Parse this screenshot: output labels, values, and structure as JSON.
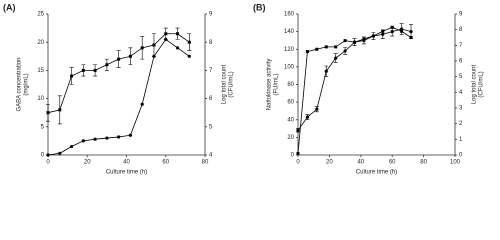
{
  "chart_data": [
    {
      "type": "line",
      "label": "(A)",
      "xlabel": "Culture time (h)",
      "ylabel": "GABA concentration\n(mg/mL)",
      "y2label": "Log total count\n(CFU/mL)",
      "x": [
        0,
        6,
        12,
        18,
        24,
        30,
        36,
        42,
        48,
        54,
        60,
        66,
        72
      ],
      "xlim": [
        0,
        80
      ],
      "xticks": [
        0,
        20,
        40,
        60,
        80
      ],
      "ylim": [
        0,
        25
      ],
      "yticks": [
        0,
        5,
        10,
        15,
        20,
        25
      ],
      "y2lim": [
        4,
        9
      ],
      "y2ticks": [
        4,
        5,
        6,
        7,
        8,
        9
      ],
      "series": [
        {
          "color": "#000000",
          "marker": "circle",
          "values": [
            0,
            0.3,
            1.5,
            2.5,
            2.8,
            3,
            3.2,
            3.5,
            9,
            17.5,
            20.5,
            19,
            17.5
          ]
        },
        {
          "color": "#000000",
          "marker": "square",
          "axis": "y2",
          "values": [
            5.5,
            5.6,
            6.8,
            7.0,
            7.0,
            7.2,
            7.4,
            7.5,
            7.8,
            7.9,
            8.3,
            8.3,
            8.0
          ],
          "errors": [
            0.3,
            0.5,
            0.3,
            0.2,
            0.2,
            0.2,
            0.3,
            0.3,
            0.4,
            0.4,
            0.2,
            0.2,
            0.3
          ]
        }
      ]
    },
    {
      "type": "line",
      "label": "(B)",
      "xlabel": "Culture time (h)",
      "ylabel": "Nattokinase activity\n(FU/mL)",
      "y2label": "Log total count\n(CFU/mL)",
      "x": [
        0,
        6,
        12,
        18,
        24,
        30,
        36,
        42,
        48,
        54,
        60,
        66,
        72
      ],
      "xlim": [
        0,
        100
      ],
      "xticks": [
        0,
        20,
        40,
        60,
        80,
        100
      ],
      "ylim": [
        0,
        160
      ],
      "yticks": [
        0,
        20,
        40,
        60,
        80,
        100,
        120,
        140,
        160
      ],
      "y2lim": [
        0,
        9
      ],
      "y2ticks": [
        0,
        1,
        2,
        3,
        4,
        5,
        6,
        7,
        8,
        9
      ],
      "series": [
        {
          "color": "#000000",
          "marker": "circle",
          "values": [
            28,
            43,
            52,
            95,
            110,
            118,
            128,
            130,
            135,
            137,
            140,
            143,
            140
          ],
          "errors": [
            2,
            3,
            3,
            6,
            5,
            4,
            4,
            4,
            4,
            5,
            5,
            6,
            8
          ]
        },
        {
          "color": "#000000",
          "marker": "square",
          "axis": "y2",
          "values": [
            0.1,
            6.6,
            6.75,
            6.9,
            6.9,
            7.3,
            7.2,
            7.4,
            7.6,
            7.9,
            8.15,
            7.9,
            7.5
          ]
        }
      ]
    }
  ]
}
